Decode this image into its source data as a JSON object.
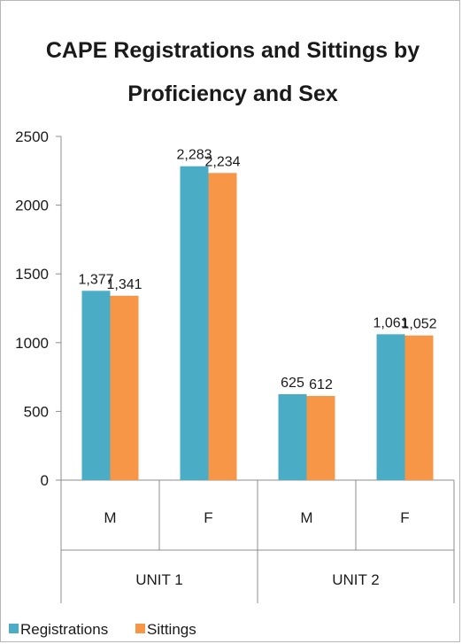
{
  "chart_data": {
    "type": "bar",
    "title_lines": [
      "CAPE Registrations and Sittings by",
      "Proficiency and Sex"
    ],
    "groups": [
      {
        "label": "UNIT 1",
        "categories": [
          "M",
          "F"
        ]
      },
      {
        "label": "UNIT 2",
        "categories": [
          "M",
          "F"
        ]
      }
    ],
    "categories": [
      "M",
      "F",
      "M",
      "F"
    ],
    "series": [
      {
        "name": "Registrations",
        "color": "#4bacc6",
        "values": [
          1377,
          2283,
          625,
          1061
        ],
        "labels": [
          "1,377",
          "2,283",
          "625",
          "1,061"
        ]
      },
      {
        "name": "Sittings",
        "color": "#f79646",
        "values": [
          1341,
          2234,
          612,
          1052
        ],
        "labels": [
          "1,341",
          "2,234",
          "612",
          "1,052"
        ]
      }
    ],
    "ylim": [
      0,
      2500
    ],
    "yticks": [
      0,
      500,
      1000,
      1500,
      2000,
      2500
    ],
    "ytick_labels": [
      "0",
      "500",
      "1000",
      "1500",
      "2000",
      "2500"
    ],
    "grid": false,
    "legend_position": "bottom-left"
  }
}
